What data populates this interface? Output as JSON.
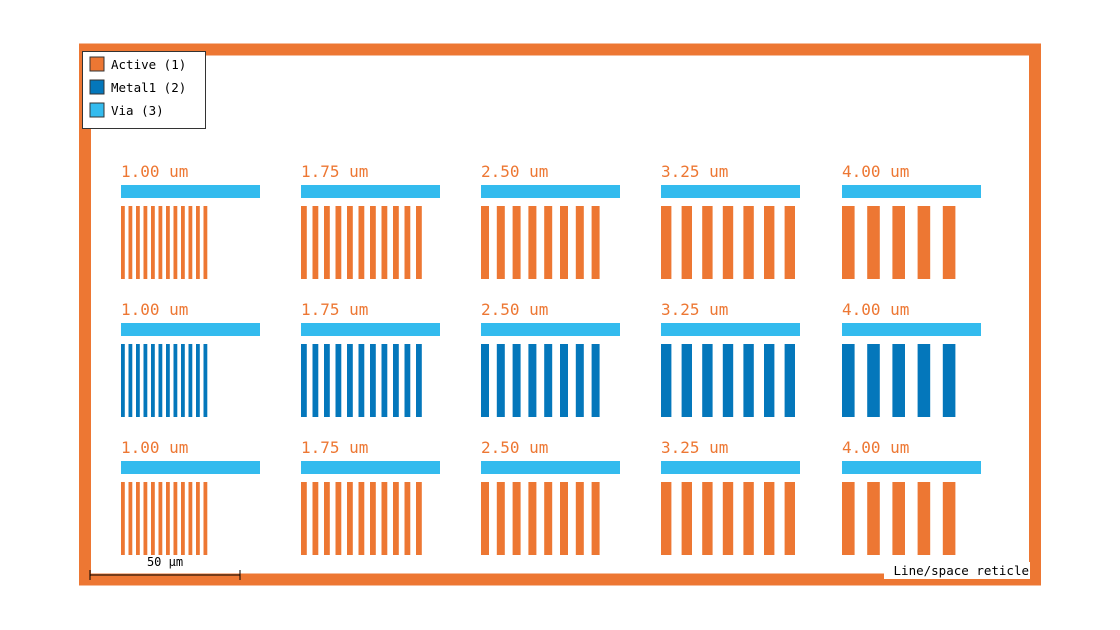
{
  "colors": {
    "active": "#ED7733",
    "metal1": "#0477BB",
    "via": "#33BBEE",
    "frame": "#ED7733",
    "text": "#000000"
  },
  "legend": {
    "items": [
      {
        "label": "Active (1)",
        "color": "#ED7733"
      },
      {
        "label": "Metal1 (2)",
        "color": "#0477BB"
      },
      {
        "label": "Via (3)",
        "color": "#33BBEE"
      }
    ]
  },
  "rows": [
    {
      "layer": "active"
    },
    {
      "layer": "metal1"
    },
    {
      "layer": "active"
    }
  ],
  "columns": [
    {
      "label": "1.00 um",
      "line_count": 12
    },
    {
      "label": "1.75 um",
      "line_count": 11
    },
    {
      "label": "2.50 um",
      "line_count": 8
    },
    {
      "label": "3.25 um",
      "line_count": 7
    },
    {
      "label": "4.00 um",
      "line_count": 5
    }
  ],
  "scale_bar": {
    "label": "50 µm"
  },
  "caption": "Line/space reticle"
}
